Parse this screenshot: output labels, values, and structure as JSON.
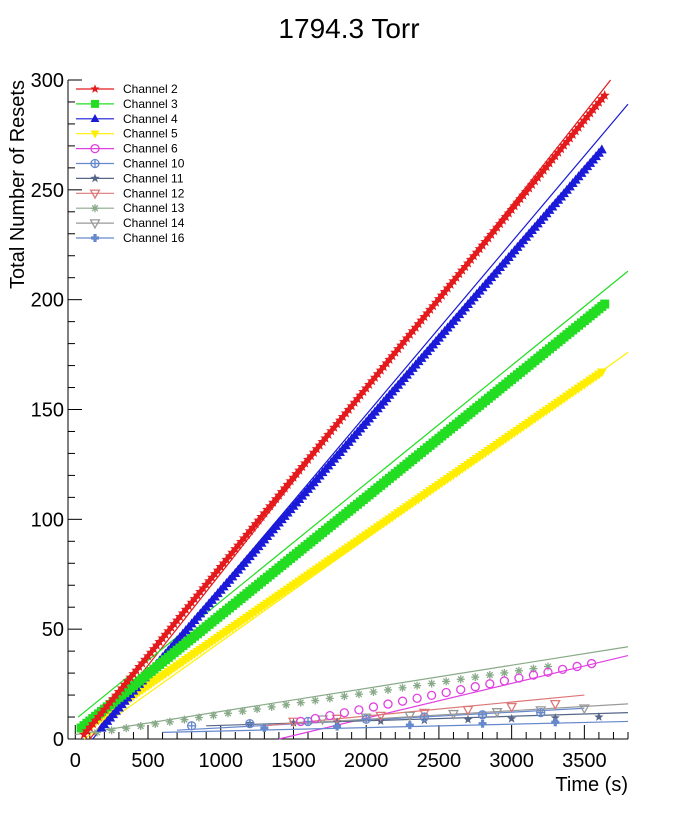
{
  "chart_data": {
    "type": "scatter",
    "title": "1794.3 Torr",
    "xlabel": "Time (s)",
    "ylabel": "Total Number of Resets",
    "xlim": [
      -50,
      3800
    ],
    "ylim": [
      0,
      300
    ],
    "x_ticks": [
      0,
      500,
      1000,
      1500,
      2000,
      2500,
      3000,
      3500
    ],
    "x_tick_labels": [
      "0",
      "500",
      "1000",
      "1500",
      "2000",
      "2500",
      "3000",
      "3500"
    ],
    "y_ticks": [
      0,
      50,
      100,
      150,
      200,
      250,
      300
    ],
    "y_tick_labels": [
      "0",
      "50",
      "100",
      "150",
      "200",
      "250",
      "300"
    ],
    "grid": false,
    "legend_position": "top-left",
    "series": [
      {
        "name": "Channel 2",
        "color": "#e41a1c",
        "marker": "star",
        "x_start": 60,
        "x_end": 3640,
        "y_start": 2,
        "y_end": 293,
        "point_step": 20,
        "fit_line": [
          [
            100,
            0
          ],
          [
            3800,
            310
          ]
        ]
      },
      {
        "name": "Channel 3",
        "color": "#22dd22",
        "marker": "square",
        "x_start": 40,
        "x_end": 3640,
        "y_start": 5,
        "y_end": 198,
        "point_step": 20,
        "fit_line": [
          [
            20,
            10
          ],
          [
            3800,
            213
          ]
        ]
      },
      {
        "name": "Channel 4",
        "color": "#1a1ad8",
        "marker": "triangle-up",
        "x_start": 180,
        "x_end": 3630,
        "y_start": 5,
        "y_end": 269,
        "point_step": 20,
        "fit_line": [
          [
            120,
            0
          ],
          [
            3800,
            289
          ]
        ]
      },
      {
        "name": "Channel 5",
        "color": "#ffee00",
        "marker": "triangle-down",
        "x_start": 80,
        "x_end": 3620,
        "y_start": 5,
        "y_end": 167,
        "point_step": 20,
        "fit_line": [
          [
            60,
            0
          ],
          [
            3800,
            176
          ]
        ]
      },
      {
        "name": "Channel 6",
        "color": "#e040e0",
        "marker": "circle-open",
        "x_start": 1550,
        "x_end": 3600,
        "y_start": 8,
        "y_end": 35,
        "point_step": 100,
        "fit_line": [
          [
            1400,
            0
          ],
          [
            3800,
            38
          ]
        ]
      },
      {
        "name": "Channel 10",
        "color": "#6688cc",
        "marker": "circle-cross",
        "x_start": 800,
        "x_end": 3200,
        "y_start": 6,
        "y_end": 12,
        "point_step": 400,
        "fit_line": [
          [
            700,
            4
          ],
          [
            3500,
            14
          ]
        ]
      },
      {
        "name": "Channel 11",
        "color": "#556688",
        "marker": "star",
        "x_start": 1200,
        "x_end": 3600,
        "y_start": 7,
        "y_end": 10,
        "point_step": 300,
        "fit_line": [
          [
            900,
            6
          ],
          [
            3800,
            12
          ]
        ]
      },
      {
        "name": "Channel 12",
        "color": "#dd7777",
        "marker": "triangle-down-open",
        "x_start": 1500,
        "x_end": 3300,
        "y_start": 8,
        "y_end": 16,
        "point_step": 300,
        "fit_line": [
          [
            1300,
            6
          ],
          [
            3500,
            20
          ]
        ]
      },
      {
        "name": "Channel 13",
        "color": "#88aa88",
        "marker": "asterisk",
        "x_start": 150,
        "x_end": 3250,
        "y_start": 3,
        "y_end": 33,
        "point_step": 100,
        "fit_line": [
          [
            0,
            2
          ],
          [
            3800,
            42
          ]
        ]
      },
      {
        "name": "Channel 14",
        "color": "#999999",
        "marker": "triangle-down-open",
        "x_start": 1700,
        "x_end": 3500,
        "y_start": 9,
        "y_end": 14,
        "point_step": 300,
        "fit_line": [
          [
            1500,
            7
          ],
          [
            3800,
            16
          ]
        ]
      },
      {
        "name": "Channel 16",
        "color": "#6688cc",
        "marker": "cross",
        "x_start": 1300,
        "x_end": 3600,
        "y_start": 5,
        "y_end": 8,
        "point_step": 500,
        "fit_line": [
          [
            600,
            3
          ],
          [
            3800,
            8
          ]
        ]
      }
    ]
  }
}
